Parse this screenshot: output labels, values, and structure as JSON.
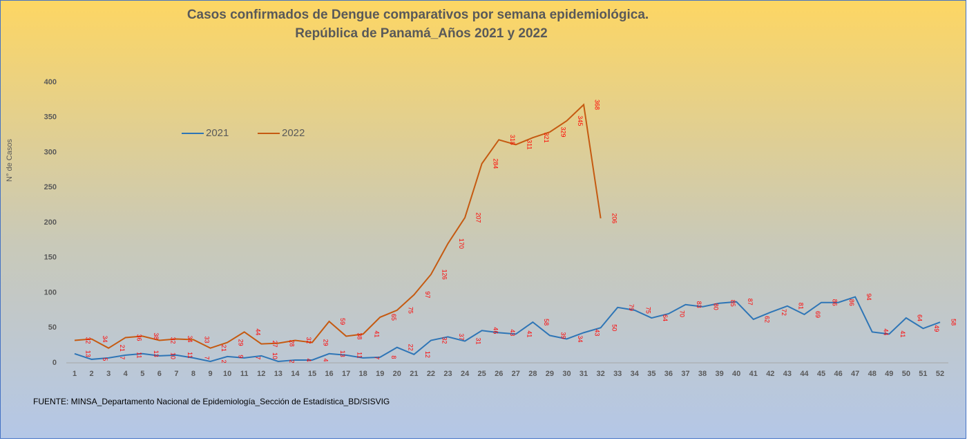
{
  "chart_data": {
    "type": "line",
    "title": [
      "Casos confirmados de Dengue comparativos por semana epidemiológica.",
      "República de Panamá_Años 2021 y 2022"
    ],
    "y_label": "N° de Casos",
    "source": "FUENTE: MINSA_Departamento Nacional de Epidemiología_Sección de Estadística_BD/SISVIG",
    "categories": [
      1,
      2,
      3,
      4,
      5,
      6,
      7,
      8,
      9,
      10,
      11,
      12,
      13,
      14,
      15,
      16,
      17,
      18,
      19,
      20,
      21,
      22,
      23,
      24,
      25,
      26,
      27,
      28,
      29,
      30,
      31,
      32,
      33,
      34,
      35,
      36,
      37,
      38,
      39,
      40,
      41,
      42,
      43,
      44,
      45,
      46,
      47,
      48,
      49,
      50,
      51,
      52
    ],
    "series": [
      {
        "name": "2021",
        "color": "#2e75b6",
        "values": [
          13,
          5,
          7,
          11,
          13,
          10,
          11,
          7,
          2,
          9,
          7,
          10,
          2,
          4,
          4,
          13,
          11,
          7,
          8,
          22,
          12,
          32,
          37,
          31,
          46,
          43,
          41,
          58,
          39,
          34,
          43,
          50,
          79,
          75,
          64,
          70,
          83,
          80,
          85,
          87,
          62,
          72,
          81,
          69,
          86,
          86,
          94,
          44,
          41,
          64,
          49,
          58
        ]
      },
      {
        "name": "2022",
        "color": "#c55a11",
        "values": [
          32,
          34,
          21,
          36,
          38,
          32,
          34,
          33,
          21,
          29,
          44,
          27,
          28,
          32,
          29,
          59,
          38,
          41,
          65,
          75,
          97,
          126,
          170,
          207,
          284,
          318,
          311,
          321,
          329,
          345,
          368,
          206,
          null,
          null,
          null,
          null,
          null,
          null,
          null,
          null,
          null,
          null,
          null,
          null,
          null,
          null,
          null,
          null,
          null,
          null,
          null,
          null
        ]
      }
    ],
    "ylim": [
      0,
      400
    ],
    "yticks": [
      0,
      50,
      100,
      150,
      200,
      250,
      300,
      350,
      400
    ],
    "grid": false,
    "label_color": "#ff0000"
  }
}
